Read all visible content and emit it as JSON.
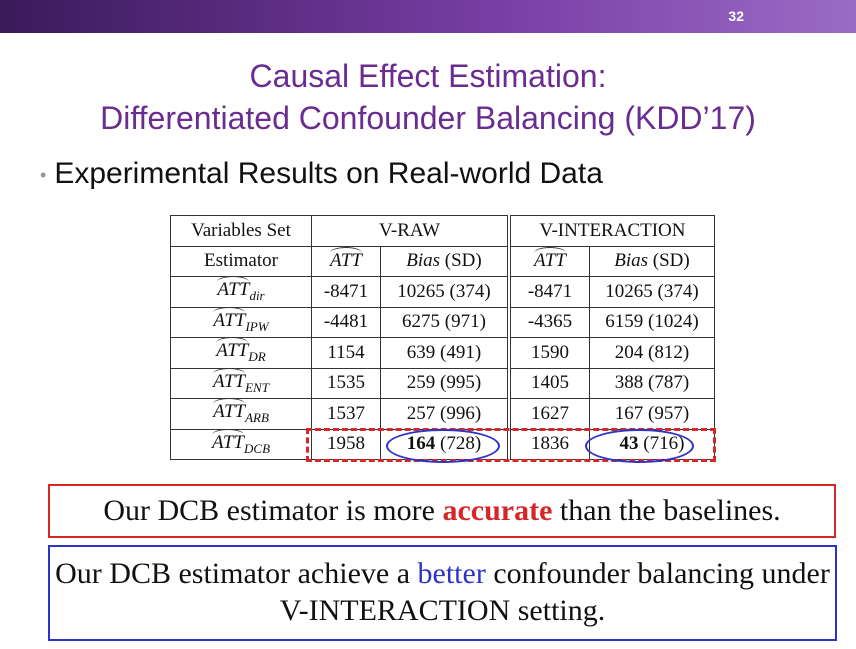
{
  "header": {
    "page_number": "32"
  },
  "title": {
    "line1": "Causal Effect Estimation:",
    "line2": "Differentiated Confounder Balancing (KDD’17)"
  },
  "bullet": "Experimental Results on Real-world Data",
  "table": {
    "header1": {
      "variables_set": "Variables Set",
      "raw": "V-RAW",
      "interaction": "V-INTERACTION"
    },
    "header2": {
      "estimator": "Estimator",
      "att": "ATT",
      "bias": "Bias",
      "sd": "(SD)"
    },
    "rows": [
      {
        "base": "ATT",
        "sub": "dir",
        "raw_att": -8471,
        "raw_bias": 10265,
        "raw_sd": "(374)",
        "int_att": -8471,
        "int_bias": 10265,
        "int_sd": "(374)"
      },
      {
        "base": "ATT",
        "sub": "IPW",
        "raw_att": -4481,
        "raw_bias": 6275,
        "raw_sd": "(971)",
        "int_att": -4365,
        "int_bias": 6159,
        "int_sd": "(1024)"
      },
      {
        "base": "ATT",
        "sub": "DR",
        "raw_att": 1154,
        "raw_bias": 639,
        "raw_sd": "(491)",
        "int_att": 1590,
        "int_bias": 204,
        "int_sd": "(812)"
      },
      {
        "base": "ATT",
        "sub": "ENT",
        "raw_att": 1535,
        "raw_bias": 259,
        "raw_sd": "(995)",
        "int_att": 1405,
        "int_bias": 388,
        "int_sd": "(787)"
      },
      {
        "base": "ATT",
        "sub": "ARB",
        "raw_att": 1537,
        "raw_bias": 257,
        "raw_sd": "(996)",
        "int_att": 1627,
        "int_bias": 167,
        "int_sd": "(957)"
      },
      {
        "base": "ATT",
        "sub": "DCB",
        "raw_att": 1958,
        "raw_bias": 164,
        "raw_sd": "(728)",
        "int_att": 1836,
        "int_bias": 43,
        "int_sd": "(716)"
      }
    ]
  },
  "notes": {
    "red": {
      "before": "Our DCB estimator is more",
      "emphasis": "accurate",
      "after": "than the baselines."
    },
    "blue": {
      "before": "Our DCB estimator achieve a",
      "emphasis": "better",
      "after": "confounder balancing under V-INTERACTION setting."
    }
  }
}
